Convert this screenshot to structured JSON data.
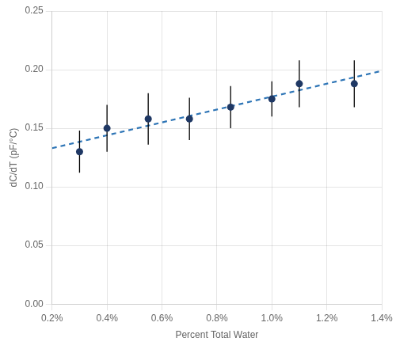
{
  "chart_data": {
    "type": "scatter",
    "xlabel": "Percent Total Water",
    "ylabel": "dC/dT (pF/°C)",
    "series": [
      {
        "type": "scatter",
        "marker": "circle",
        "color": "#1f3864",
        "x": [
          0.003,
          0.004,
          0.0055,
          0.007,
          0.0085,
          0.01,
          0.011,
          0.013
        ],
        "values": [
          0.13,
          0.15,
          0.158,
          0.158,
          0.168,
          0.175,
          0.188,
          0.188
        ],
        "yerr": [
          0.018,
          0.02,
          0.022,
          0.018,
          0.018,
          0.015,
          0.02,
          0.02
        ]
      },
      {
        "type": "line",
        "line_style": "dashed",
        "color": "#2e75b6",
        "x": [
          0.002,
          0.014
        ],
        "values": [
          0.133,
          0.199
        ]
      }
    ],
    "xlim": [
      0.002,
      0.014
    ],
    "ylim": [
      0.0,
      0.25
    ],
    "xticks": [
      {
        "value": 0.002,
        "label": "0.2%"
      },
      {
        "value": 0.004,
        "label": "0.4%"
      },
      {
        "value": 0.006,
        "label": "0.6%"
      },
      {
        "value": 0.008,
        "label": "0.8%"
      },
      {
        "value": 0.01,
        "label": "1.0%"
      },
      {
        "value": 0.012,
        "label": "1.2%"
      },
      {
        "value": 0.014,
        "label": "1.4%"
      }
    ],
    "yticks": [
      {
        "value": 0.0,
        "label": "0.00"
      },
      {
        "value": 0.05,
        "label": "0.05"
      },
      {
        "value": 0.1,
        "label": "0.10"
      },
      {
        "value": 0.15,
        "label": "0.15"
      },
      {
        "value": 0.2,
        "label": "0.20"
      },
      {
        "value": 0.25,
        "label": "0.25"
      }
    ],
    "grid": true
  }
}
